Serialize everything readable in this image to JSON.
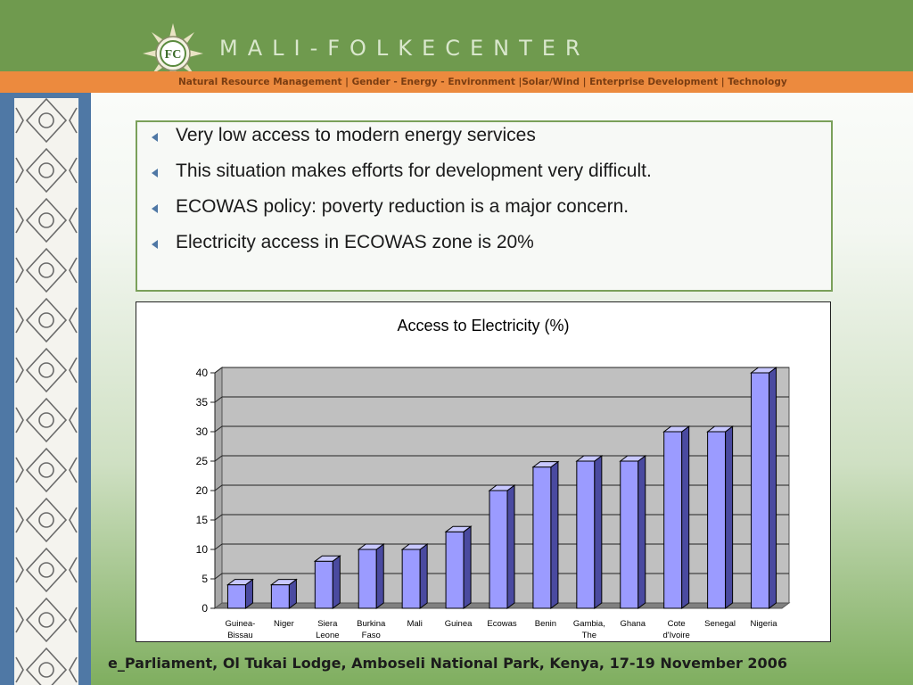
{
  "header": {
    "brand": "MALI-FOLKECENTER",
    "logo_text": "FC",
    "tagline": "Natural Resource Management | Gender - Energy - Environment |Solar/Wind | Enterprise Development | Technology"
  },
  "bullets": [
    "Very low access to modern energy services",
    "This situation makes efforts for development very difficult.",
    "ECOWAS policy: poverty reduction is a major concern.",
    "Electricity access in ECOWAS zone is 20%"
  ],
  "chart_data": {
    "type": "bar",
    "title": "Access to Electricity (%)",
    "categories": [
      "Guinea-Bissau",
      "Niger",
      "Siera Leone",
      "Burkina Faso",
      "Mali",
      "Guinea",
      "Ecowas",
      "Benin",
      "Gambia, The",
      "Ghana",
      "Cote d'Ivoire",
      "Senegal",
      "Nigeria"
    ],
    "category_lines": [
      [
        "Guinea-",
        "Bissau"
      ],
      [
        "Niger"
      ],
      [
        "Siera",
        "Leone"
      ],
      [
        "Burkina",
        "Faso"
      ],
      [
        "Mali"
      ],
      [
        "Guinea"
      ],
      [
        "Ecowas"
      ],
      [
        "Benin"
      ],
      [
        "Gambia,",
        "The"
      ],
      [
        "Ghana"
      ],
      [
        "Cote",
        "d'Ivoire"
      ],
      [
        "Senegal"
      ],
      [
        "Nigeria"
      ]
    ],
    "values": [
      4,
      4,
      8,
      10,
      10,
      13,
      20,
      24,
      25,
      25,
      30,
      30,
      40
    ],
    "ylim": [
      0,
      40
    ],
    "yticks": [
      0,
      5,
      10,
      15,
      20,
      25,
      30,
      35,
      40
    ],
    "grid": true,
    "bar_color": "#9b9bff",
    "plot_bg": "#c0c0c0"
  },
  "footer": "e_Parliament, Ol Tukai Lodge, Amboseli National Park, Kenya, 17-19 November 2006"
}
